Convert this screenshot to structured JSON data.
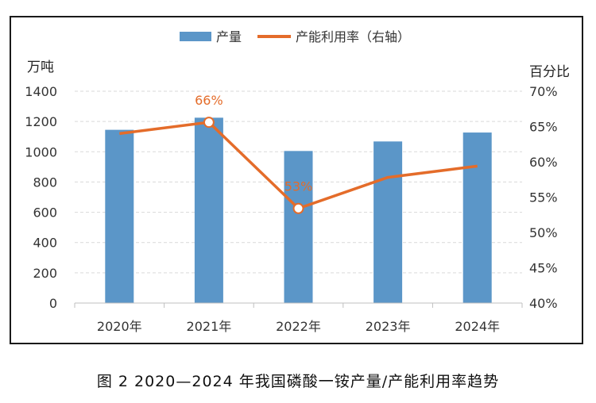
{
  "caption": "图 2 2020—2024 年我国磷酸一铵产量/产能利用率趋势",
  "chart_data": {
    "type": "bar+line",
    "categories": [
      "2020年",
      "2021年",
      "2022年",
      "2023年",
      "2024年"
    ],
    "left_unit": "万吨",
    "right_unit": "百分比",
    "left_ticks": [
      "0",
      "200",
      "400",
      "600",
      "800",
      "1000",
      "1200",
      "1400"
    ],
    "right_ticks": [
      "40%",
      "45%",
      "50%",
      "55%",
      "60%",
      "65%",
      "70%"
    ],
    "ylim_left": [
      0,
      1400
    ],
    "ylim_right": [
      40,
      70
    ],
    "grid": "horizontal dashed",
    "legend_position": "top",
    "series": [
      {
        "name": "产量",
        "type": "bar",
        "axis": "left",
        "values": [
          1145,
          1225,
          1005,
          1068,
          1127
        ],
        "color": "#5B96C8"
      },
      {
        "name": "产能利用率（右轴）",
        "type": "line",
        "axis": "right",
        "values": [
          64.0,
          65.6,
          53.4,
          57.8,
          59.4
        ],
        "color": "#E46C2A"
      }
    ],
    "data_labels": [
      {
        "series": 1,
        "index": 1,
        "text": "66%"
      },
      {
        "series": 1,
        "index": 2,
        "text": "53%"
      }
    ]
  }
}
